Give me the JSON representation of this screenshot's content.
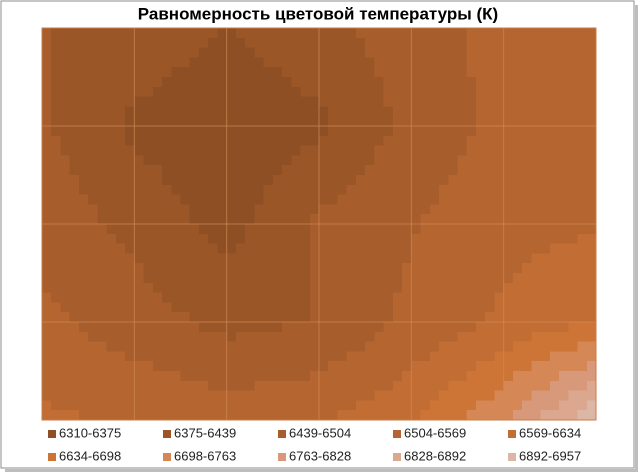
{
  "chart_data": {
    "type": "contour",
    "title": "Равномерность цветовой температуры (К)",
    "z": [
      [
        6440,
        6420,
        6370,
        6420,
        6470,
        6530,
        6550
      ],
      [
        6450,
        6360,
        6330,
        6360,
        6460,
        6520,
        6560
      ],
      [
        6480,
        6420,
        6350,
        6450,
        6500,
        6550,
        6560
      ],
      [
        6520,
        6470,
        6420,
        6440,
        6520,
        6580,
        6640
      ],
      [
        6580,
        6560,
        6540,
        6560,
        6620,
        6760,
        6950
      ]
    ],
    "bands": [
      {
        "label": "6310-6375",
        "min": 6310,
        "max": 6375,
        "color": "#8e4f25"
      },
      {
        "label": "6375-6439",
        "min": 6375,
        "max": 6439,
        "color": "#9b5628"
      },
      {
        "label": "6439-6504",
        "min": 6439,
        "max": 6504,
        "color": "#a85d2c"
      },
      {
        "label": "6504-6569",
        "min": 6504,
        "max": 6569,
        "color": "#b5652f"
      },
      {
        "label": "6569-6634",
        "min": 6569,
        "max": 6634,
        "color": "#c26d33"
      },
      {
        "label": "6634-6698",
        "min": 6634,
        "max": 6698,
        "color": "#cd7537"
      },
      {
        "label": "6698-6763",
        "min": 6698,
        "max": 6763,
        "color": "#d58855"
      },
      {
        "label": "6763-6828",
        "min": 6763,
        "max": 6828,
        "color": "#d8997a"
      },
      {
        "label": "6828-6892",
        "min": 6828,
        "max": 6892,
        "color": "#dba88f"
      },
      {
        "label": "6892-6957",
        "min": 6892,
        "max": 6957,
        "color": "#ddb7a5"
      }
    ]
  }
}
